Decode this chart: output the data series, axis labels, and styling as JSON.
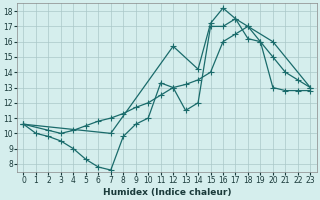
{
  "xlabel": "Humidex (Indice chaleur)",
  "bg_color": "#d5eeed",
  "grid_color": "#aac8c8",
  "line_color": "#1a6b6b",
  "xlim": [
    -0.5,
    23.5
  ],
  "ylim": [
    7.5,
    18.5
  ],
  "xticks": [
    0,
    1,
    2,
    3,
    4,
    5,
    6,
    7,
    8,
    9,
    10,
    11,
    12,
    13,
    14,
    15,
    16,
    17,
    18,
    19,
    20,
    21,
    22,
    23
  ],
  "yticks": [
    8,
    9,
    10,
    11,
    12,
    13,
    14,
    15,
    16,
    17,
    18
  ],
  "line1_x": [
    0,
    1,
    2,
    3,
    4,
    5,
    6,
    7,
    8,
    9,
    10,
    11,
    12,
    13,
    14,
    15,
    16,
    17,
    18,
    19,
    20,
    21,
    22,
    23
  ],
  "line1_y": [
    10.6,
    10.0,
    9.8,
    9.5,
    9.0,
    8.3,
    7.8,
    7.6,
    9.8,
    10.6,
    11.0,
    13.3,
    13.0,
    11.5,
    12.0,
    17.0,
    17.0,
    17.5,
    16.2,
    16.0,
    13.0,
    12.8,
    12.8,
    12.8
  ],
  "line2_x": [
    0,
    2,
    3,
    4,
    5,
    6,
    7,
    8,
    9,
    10,
    11,
    12,
    13,
    14,
    15,
    16,
    17,
    18,
    19,
    20,
    21,
    22,
    23
  ],
  "line2_y": [
    10.6,
    10.2,
    10.0,
    10.2,
    10.5,
    10.8,
    11.0,
    11.3,
    11.7,
    12.0,
    12.5,
    13.0,
    13.2,
    13.5,
    14.0,
    16.0,
    16.5,
    17.0,
    16.0,
    15.0,
    14.0,
    13.5,
    13.0
  ],
  "line3_x": [
    0,
    7,
    12,
    14,
    15,
    16,
    17,
    18,
    20,
    23
  ],
  "line3_y": [
    10.6,
    10.0,
    15.7,
    14.2,
    17.2,
    18.2,
    17.5,
    17.0,
    16.0,
    13.0
  ]
}
